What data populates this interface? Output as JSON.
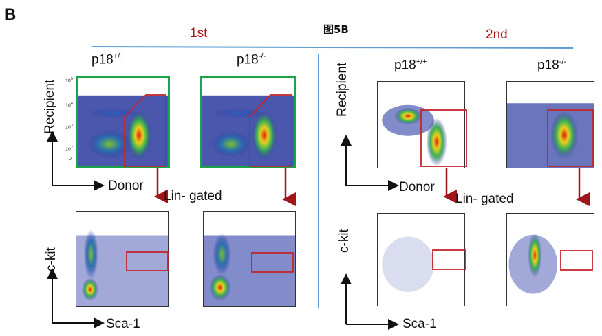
{
  "panel_letter": "B",
  "figure_title": "图5B",
  "rounds": [
    "1st",
    "2nd"
  ],
  "genotypes": {
    "wt": {
      "base": "p18",
      "sup": "+/+"
    },
    "ko": {
      "base": "p18",
      "sup": "-/-"
    }
  },
  "axes": {
    "recipient": "Recipient",
    "donor": "Donor",
    "ckit": "c-kit",
    "sca1": "Sca-1"
  },
  "gate_label": "Lin- gated",
  "tick_labels": {
    "e5": "10",
    "e4": "10",
    "e3": "10",
    "e2": "10",
    "zero": "0",
    "sup5": "5",
    "sup4": "4",
    "sup3": "3",
    "sup2": "2"
  },
  "colors": {
    "round_text": "#b01010",
    "gate_box": "#c0262b",
    "arrow": "#a0151a",
    "divider_line": "#5b9bd5",
    "gated_border": "#1aa34a"
  }
}
